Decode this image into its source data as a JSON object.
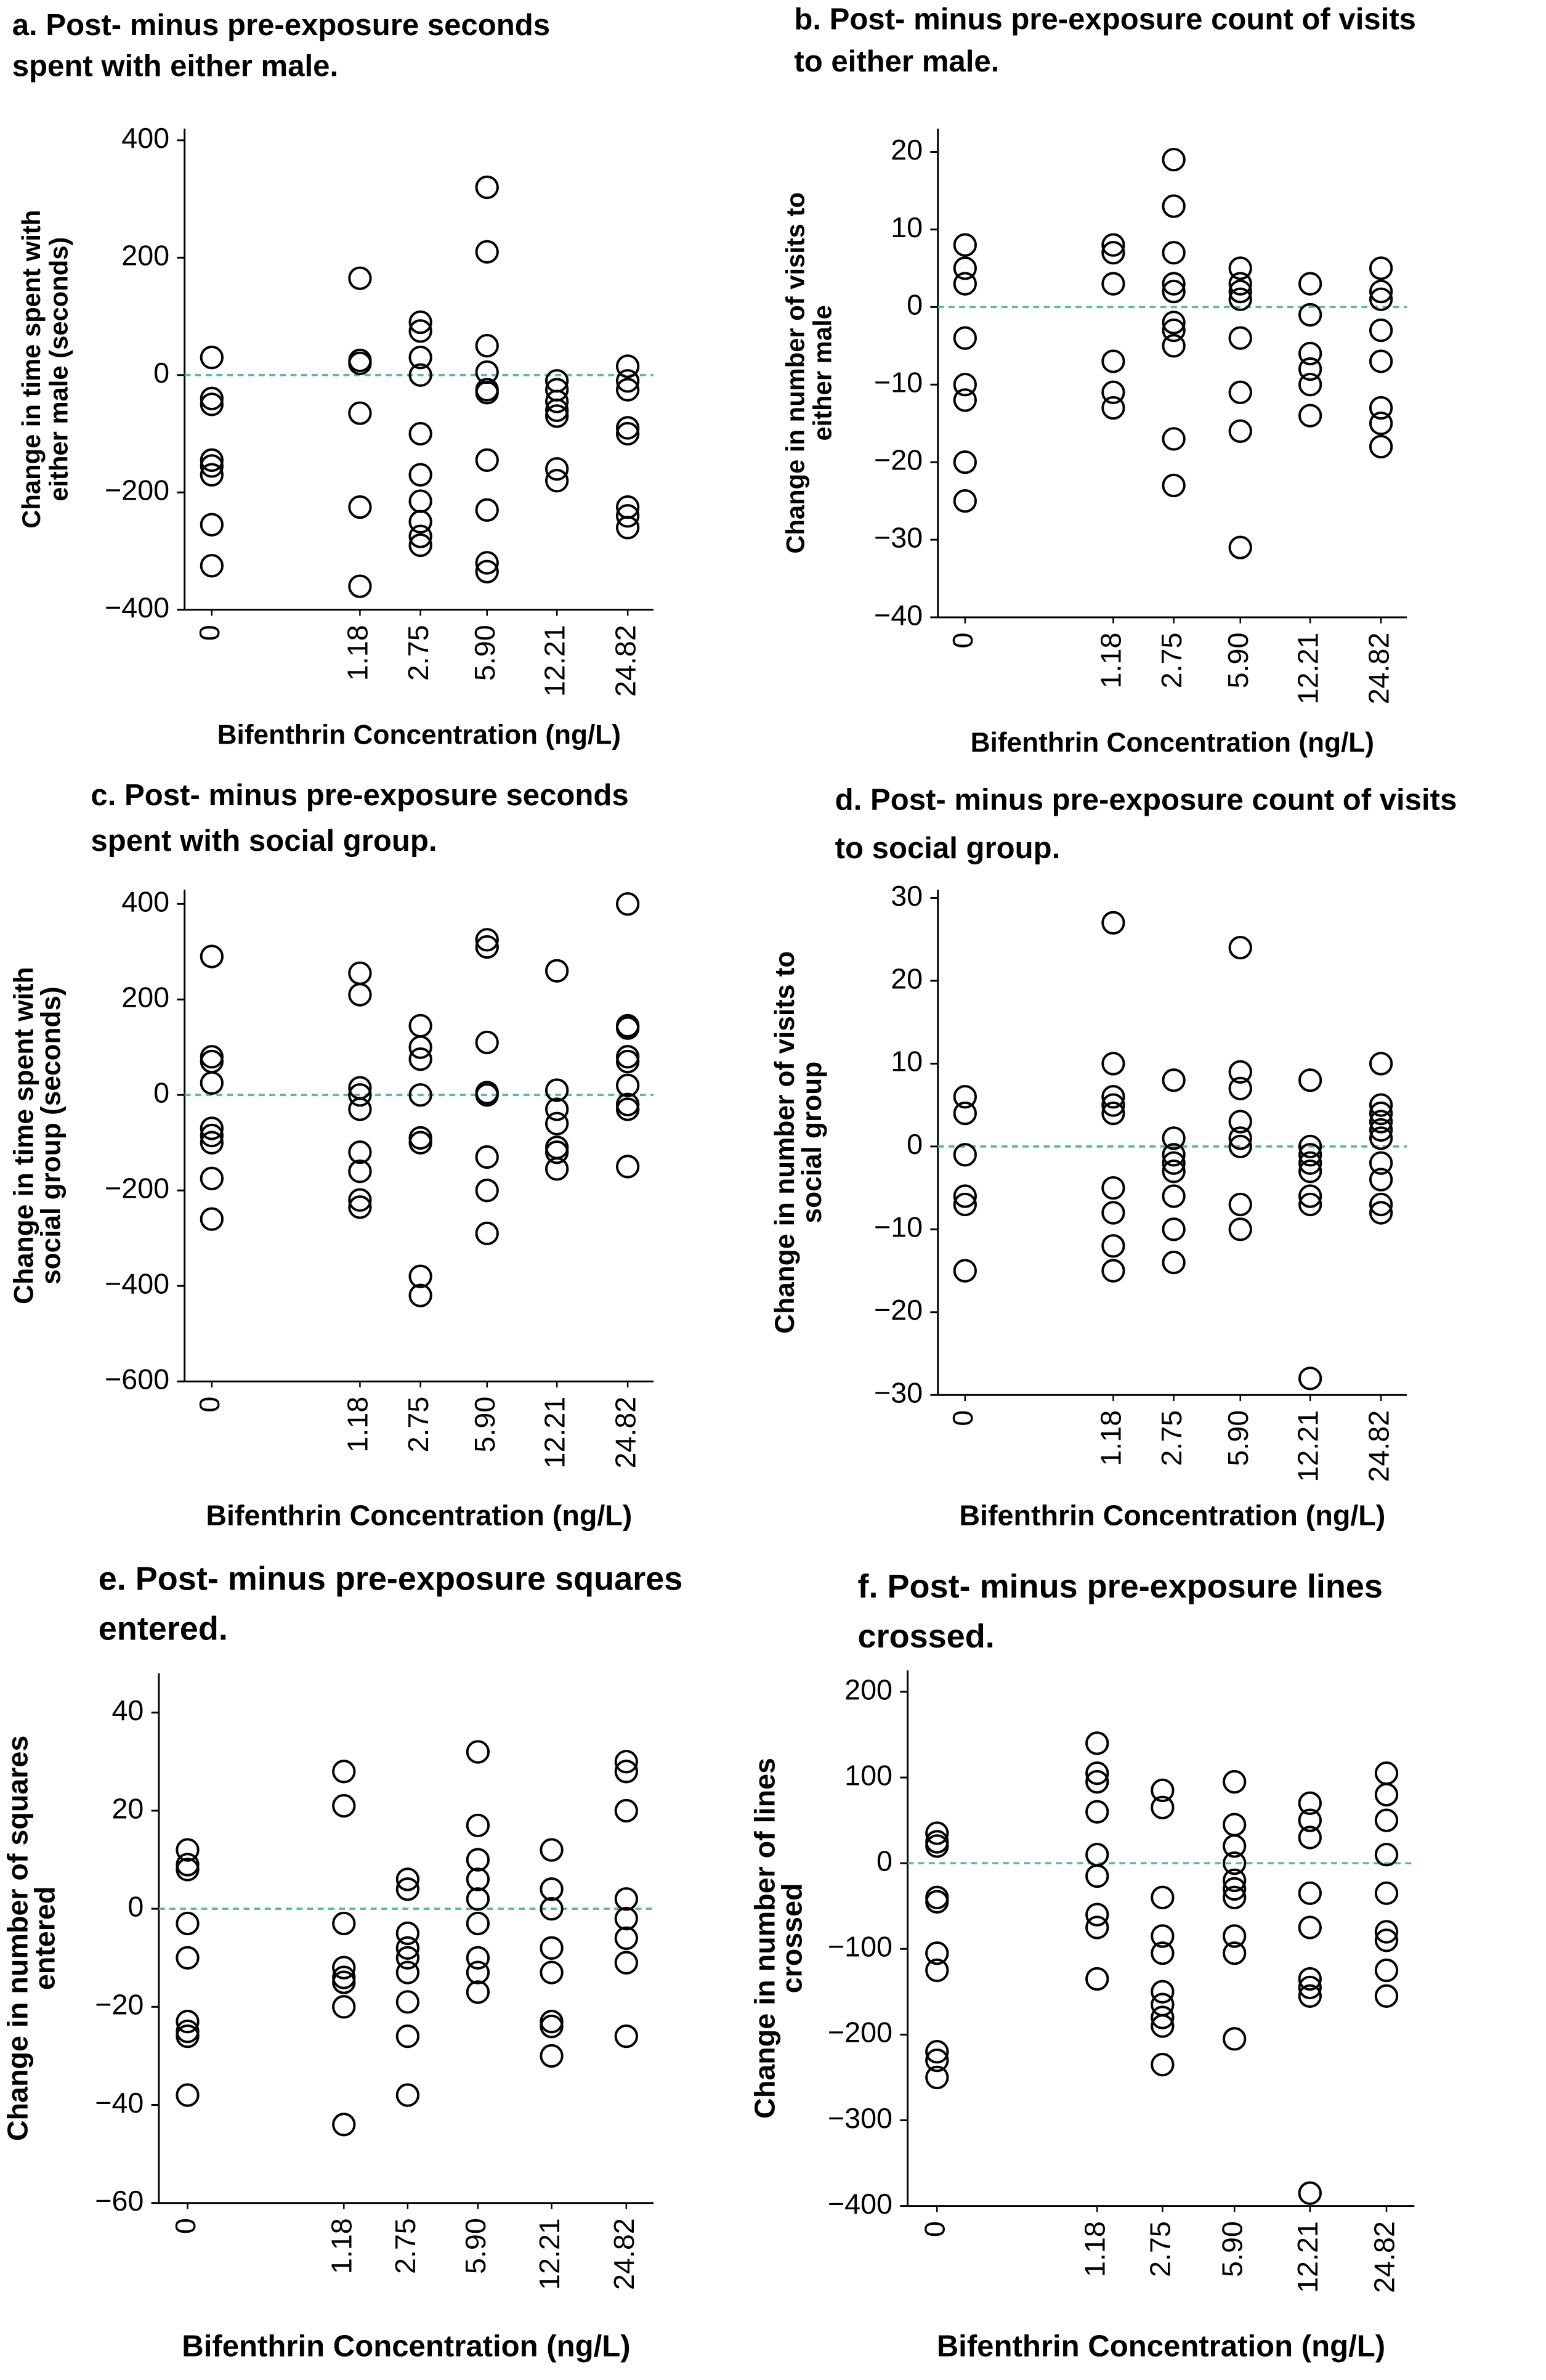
{
  "chart_data": [
    {
      "type": "scatter",
      "title": [
        "a. Post- minus pre-exposure seconds",
        "spent with either male."
      ],
      "x_label": "Bifenthrin Concentration (ng/L)",
      "y_label": [
        "Change in time spent with",
        "either male (seconds)"
      ],
      "categories": [
        "0",
        "1.18",
        "2.75",
        "5.90",
        "12.21",
        "24.82"
      ],
      "values": [
        [
          30,
          -40,
          -50,
          -145,
          -155,
          -170,
          -255,
          -325
        ],
        [
          165,
          25,
          20,
          -65,
          -225,
          -360
        ],
        [
          90,
          75,
          30,
          0,
          -100,
          -170,
          -215,
          -250,
          -275,
          -290
        ],
        [
          320,
          210,
          50,
          5,
          -25,
          -30,
          -145,
          -230,
          -320,
          -335
        ],
        [
          -10,
          -25,
          -45,
          -60,
          -70,
          -160,
          -180
        ],
        [
          15,
          -10,
          -25,
          -90,
          -100,
          -225,
          -240,
          -260
        ]
      ],
      "color": "#000000",
      "hline": 0,
      "hline_color": "#5fb7a6",
      "ylim": [
        -400,
        420
      ],
      "yticks": [
        {
          "value": -400,
          "label": "−400"
        },
        {
          "value": -200,
          "label": "−200"
        },
        0,
        200,
        400
      ]
    },
    {
      "type": "scatter",
      "title": [
        "b. Post- minus pre-exposure count of visits",
        "to either male."
      ],
      "x_label": "Bifenthrin Concentration (ng/L)",
      "y_label": [
        "Change in number of visits to",
        "either male"
      ],
      "categories": [
        "0",
        "1.18",
        "2.75",
        "5.90",
        "12.21",
        "24.82"
      ],
      "values": [
        [
          8,
          5,
          3,
          -4,
          -10,
          -12,
          -20,
          -25
        ],
        [
          8,
          7,
          3,
          -7,
          -11,
          -13
        ],
        [
          19,
          13,
          7,
          3,
          2,
          -2,
          -3,
          -5,
          -17,
          -23
        ],
        [
          5,
          3,
          2,
          1,
          -4,
          -11,
          -16,
          -31
        ],
        [
          3,
          -1,
          -6,
          -8,
          -10,
          -14
        ],
        [
          5,
          2,
          1,
          -3,
          -7,
          -13,
          -15,
          -18
        ]
      ],
      "color": "#000000",
      "hline": 0,
      "hline_color": "#5fb7a6",
      "ylim": [
        -40,
        23
      ],
      "yticks": [
        {
          "value": -40,
          "label": "−40"
        },
        {
          "value": -30,
          "label": "−30"
        },
        {
          "value": -20,
          "label": "−20"
        },
        {
          "value": -10,
          "label": "−10"
        },
        0,
        10,
        20
      ]
    },
    {
      "type": "scatter",
      "title": [
        "c. Post- minus pre-exposure seconds",
        "spent with social group."
      ],
      "x_label": "Bifenthrin Concentration (ng/L)",
      "y_label": [
        "Change in time spent with",
        "social group (seconds)"
      ],
      "categories": [
        "0",
        "1.18",
        "2.75",
        "5.90",
        "12.21",
        "24.82"
      ],
      "values": [
        [
          290,
          80,
          70,
          25,
          -70,
          -85,
          -100,
          -175,
          -260
        ],
        [
          255,
          210,
          15,
          0,
          -30,
          -120,
          -160,
          -220,
          -235
        ],
        [
          145,
          100,
          75,
          0,
          -90,
          -100,
          -380,
          -420
        ],
        [
          325,
          310,
          110,
          5,
          0,
          -130,
          -200,
          -290
        ],
        [
          260,
          10,
          -30,
          -60,
          -110,
          -120,
          -155
        ],
        [
          400,
          145,
          140,
          80,
          70,
          20,
          -20,
          -30,
          -150
        ]
      ],
      "color": "#000000",
      "hline": 0,
      "hline_color": "#5fb7a6",
      "ylim": [
        -600,
        430
      ],
      "yticks": [
        {
          "value": -600,
          "label": "−600"
        },
        {
          "value": -400,
          "label": "−400"
        },
        {
          "value": -200,
          "label": "−200"
        },
        0,
        200,
        400
      ]
    },
    {
      "type": "scatter",
      "title": [
        "d. Post- minus pre-exposure count of visits",
        "to social group."
      ],
      "x_label": "Bifenthrin Concentration (ng/L)",
      "y_label": [
        "Change in number of visits to",
        "social group"
      ],
      "categories": [
        "0",
        "1.18",
        "2.75",
        "5.90",
        "12.21",
        "24.82"
      ],
      "values": [
        [
          6,
          4,
          -1,
          -6,
          -7,
          -15
        ],
        [
          27,
          10,
          6,
          5,
          4,
          -5,
          -8,
          -12,
          -15
        ],
        [
          8,
          1,
          -1,
          -2,
          -3,
          -6,
          -10,
          -14
        ],
        [
          24,
          9,
          7,
          3,
          1,
          0,
          -7,
          -10
        ],
        [
          8,
          0,
          -1,
          -2,
          -3,
          -6,
          -7,
          -28
        ],
        [
          10,
          5,
          4,
          3,
          2,
          1,
          -2,
          -4,
          -7,
          -8
        ]
      ],
      "color": "#000000",
      "hline": 0,
      "hline_color": "#5fb7a6",
      "ylim": [
        -30,
        31
      ],
      "yticks": [
        {
          "value": -30,
          "label": "−30"
        },
        {
          "value": -20,
          "label": "−20"
        },
        {
          "value": -10,
          "label": "−10"
        },
        0,
        10,
        20,
        30
      ]
    },
    {
      "type": "scatter",
      "title": [
        "e. Post- minus pre-exposure squares",
        "entered."
      ],
      "x_label": "Bifenthrin Concentration (ng/L)",
      "y_label": [
        "Change in number of squares",
        "entered"
      ],
      "categories": [
        "0",
        "1.18",
        "2.75",
        "5.90",
        "12.21",
        "24.82"
      ],
      "values": [
        [
          12,
          9,
          8,
          -3,
          -10,
          -23,
          -25,
          -26,
          -38
        ],
        [
          28,
          21,
          -3,
          -12,
          -14,
          -15,
          -20,
          -44
        ],
        [
          6,
          4,
          -5,
          -8,
          -10,
          -13,
          -19,
          -26,
          -38
        ],
        [
          32,
          17,
          10,
          6,
          2,
          -3,
          -10,
          -13,
          -17
        ],
        [
          12,
          4,
          0,
          -8,
          -13,
          -23,
          -24,
          -30
        ],
        [
          30,
          28,
          20,
          2,
          -2,
          -6,
          -11,
          -26
        ]
      ],
      "color": "#000000",
      "hline": 0,
      "hline_color": "#5fb7a6",
      "ylim": [
        -60,
        48
      ],
      "yticks": [
        {
          "value": -60,
          "label": "−60"
        },
        {
          "value": -40,
          "label": "−40"
        },
        {
          "value": -20,
          "label": "−20"
        },
        0,
        20,
        40
      ]
    },
    {
      "type": "scatter",
      "title": [
        "f. Post- minus pre-exposure lines",
        "crossed."
      ],
      "x_label": "Bifenthrin Concentration (ng/L)",
      "y_label": [
        "Change in number of lines",
        "crossed"
      ],
      "categories": [
        "0",
        "1.18",
        "2.75",
        "5.90",
        "12.21",
        "24.82"
      ],
      "values": [
        [
          35,
          25,
          20,
          -40,
          -45,
          -105,
          -125,
          -220,
          -230,
          -250
        ],
        [
          140,
          105,
          95,
          60,
          10,
          -15,
          -60,
          -75,
          -135
        ],
        [
          85,
          65,
          -40,
          -85,
          -105,
          -150,
          -165,
          -180,
          -190,
          -235
        ],
        [
          95,
          45,
          20,
          0,
          -20,
          -30,
          -40,
          -85,
          -105,
          -205
        ],
        [
          70,
          50,
          30,
          -35,
          -75,
          -135,
          -145,
          -155,
          -385
        ],
        [
          105,
          80,
          50,
          10,
          -35,
          -80,
          -90,
          -125,
          -155
        ]
      ],
      "color": "#000000",
      "hline": 0,
      "hline_color": "#5fb7a6",
      "ylim": [
        -400,
        225
      ],
      "yticks": [
        {
          "value": -400,
          "label": "−400"
        },
        {
          "value": -300,
          "label": "−300"
        },
        {
          "value": -200,
          "label": "−200"
        },
        {
          "value": -100,
          "label": "−100"
        },
        0,
        100,
        200
      ]
    }
  ]
}
